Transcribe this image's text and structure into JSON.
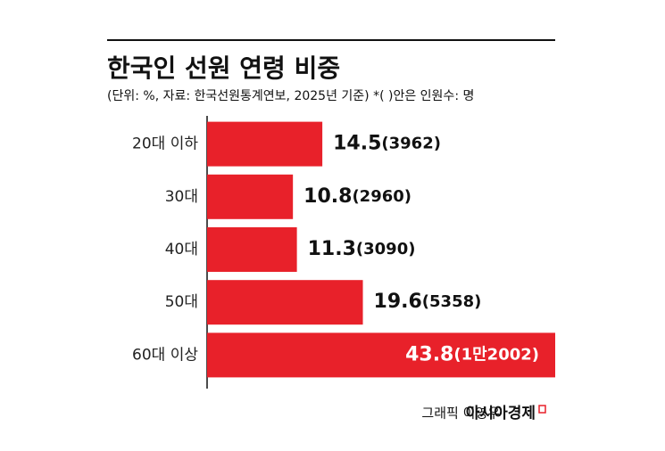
{
  "chart_data": {
    "type": "bar",
    "orientation": "horizontal",
    "title": "한국인 선원 연령 비중",
    "subtitle": "(단위: %, 자료: 한국선원통계연보, 2025년 기준) *(  )안은 인원수: 명",
    "categories": [
      "20대 이하",
      "30대",
      "40대",
      "50대",
      "60대 이상"
    ],
    "values": [
      14.5,
      10.8,
      11.3,
      19.6,
      43.8
    ],
    "count_labels": [
      "(3962)",
      "(2960)",
      "(3090)",
      "(5358)",
      "(1만2002)"
    ],
    "color": "#e8212a",
    "credit": "그래픽 이영우",
    "source_logo": "아시아경제"
  }
}
